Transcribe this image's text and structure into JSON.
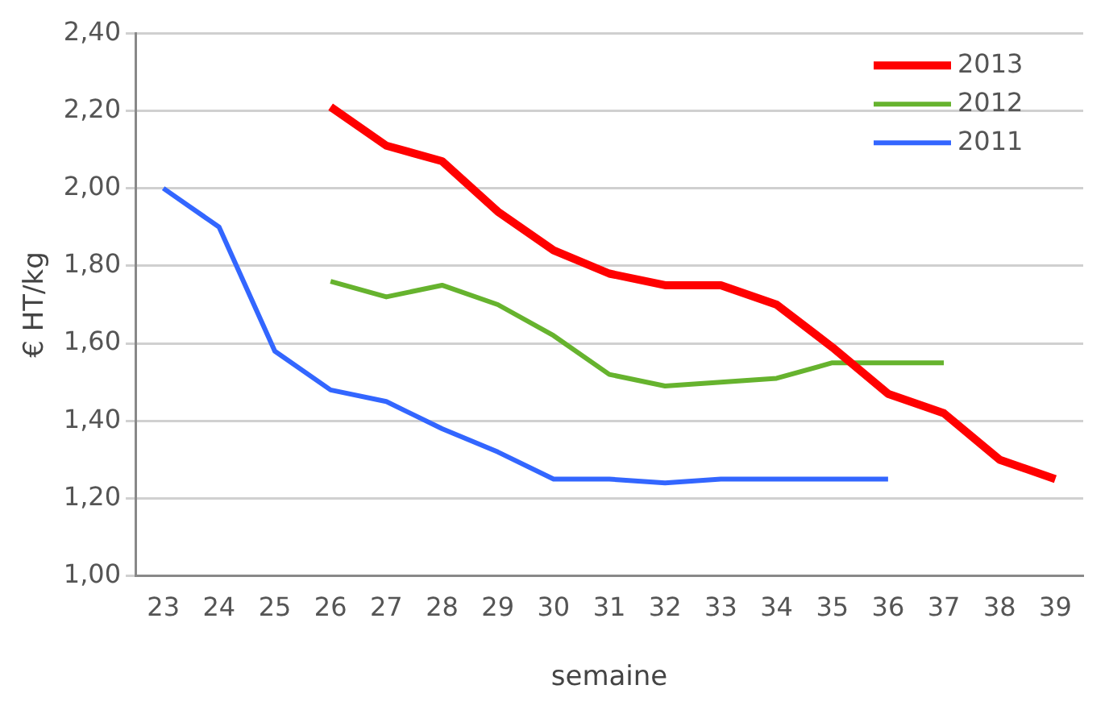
{
  "chart_data": {
    "type": "line",
    "xlabel": "semaine",
    "ylabel": "€ HT/kg",
    "categories": [
      "23",
      "24",
      "25",
      "26",
      "27",
      "28",
      "29",
      "30",
      "31",
      "32",
      "33",
      "34",
      "35",
      "36",
      "37",
      "38",
      "39"
    ],
    "series": [
      {
        "name": "2013",
        "color": "#ff0000",
        "values": [
          null,
          null,
          null,
          2.21,
          2.11,
          2.07,
          1.94,
          1.84,
          1.78,
          1.75,
          1.75,
          1.7,
          1.59,
          1.47,
          1.42,
          1.3,
          1.25
        ]
      },
      {
        "name": "2012",
        "color": "#66b32e",
        "values": [
          null,
          null,
          null,
          1.76,
          1.72,
          1.75,
          1.7,
          1.62,
          1.52,
          1.49,
          1.5,
          1.51,
          1.55,
          1.55,
          1.55,
          null,
          null
        ]
      },
      {
        "name": "2011",
        "color": "#3366ff",
        "values": [
          2.0,
          1.9,
          1.58,
          1.48,
          1.45,
          1.38,
          1.32,
          1.25,
          1.25,
          1.24,
          1.25,
          1.25,
          1.25,
          1.25,
          null,
          null,
          null
        ]
      }
    ],
    "ylim": [
      1.0,
      2.4
    ],
    "yticks": [
      {
        "value": 1.0,
        "label": "1,00"
      },
      {
        "value": 1.2,
        "label": "1,20"
      },
      {
        "value": 1.4,
        "label": "1,40"
      },
      {
        "value": 1.6,
        "label": "1,60"
      },
      {
        "value": 1.8,
        "label": "1,80"
      },
      {
        "value": 2.0,
        "label": "2,00"
      },
      {
        "value": 2.2,
        "label": "2,20"
      },
      {
        "value": 2.4,
        "label": "2,40"
      }
    ],
    "grid": "y",
    "legend": "top right",
    "marker": "none",
    "line_style": "solid"
  }
}
